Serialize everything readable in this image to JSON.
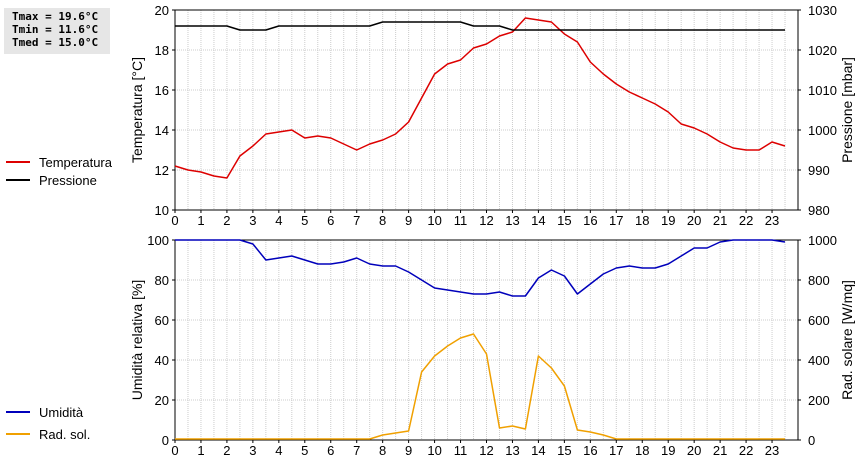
{
  "stats": {
    "tmax": "Tmax = 19.6°C",
    "tmin": "Tmin = 11.6°C",
    "tmed": "Tmed = 15.0°C"
  },
  "chart_data": [
    {
      "type": "line",
      "ylabel": "Temperatura [°C]",
      "y2label": "Pressione [mbar]",
      "xlim": [
        0,
        24
      ],
      "ylim": [
        10,
        20
      ],
      "y2lim": [
        980,
        1030
      ],
      "x_ticks": [
        "0",
        "1",
        "2",
        "3",
        "4",
        "5",
        "6",
        "7",
        "8",
        "9",
        "10",
        "11",
        "12",
        "13",
        "14",
        "15",
        "16",
        "17",
        "18",
        "19",
        "20",
        "21",
        "22",
        "23"
      ],
      "y_ticks": [
        "10",
        "12",
        "14",
        "16",
        "18",
        "20"
      ],
      "y2_ticks": [
        "980",
        "990",
        "1000",
        "1010",
        "1020",
        "1030"
      ],
      "grid": true,
      "series": [
        {
          "name": "Temperatura",
          "color": "#dd0000",
          "axis": "left",
          "x": [
            0,
            0.5,
            1,
            1.5,
            2,
            2.5,
            3,
            3.5,
            4,
            4.5,
            5,
            5.5,
            6,
            6.5,
            7,
            7.5,
            8,
            8.5,
            9,
            9.5,
            10,
            10.5,
            11,
            11.5,
            12,
            12.5,
            13,
            13.5,
            14,
            14.5,
            15,
            15.5,
            16,
            16.5,
            17,
            17.5,
            18,
            18.5,
            19,
            19.5,
            20,
            20.5,
            21,
            21.5,
            22,
            22.5,
            23,
            23.5
          ],
          "y": [
            12.2,
            12.0,
            11.9,
            11.7,
            11.6,
            12.7,
            13.2,
            13.8,
            13.9,
            14.0,
            13.6,
            13.7,
            13.6,
            13.3,
            13.0,
            13.3,
            13.5,
            13.8,
            14.4,
            15.6,
            16.8,
            17.3,
            17.5,
            18.1,
            18.3,
            18.7,
            18.9,
            19.6,
            19.5,
            19.4,
            18.8,
            18.4,
            17.4,
            16.8,
            16.3,
            15.9,
            15.6,
            15.3,
            14.9,
            14.3,
            14.1,
            13.8,
            13.4,
            13.1,
            13.0,
            13.0,
            13.4,
            13.2
          ]
        },
        {
          "name": "Pressione",
          "color": "#000000",
          "axis": "right",
          "x": [
            0,
            2,
            2.5,
            3,
            3.5,
            4,
            4.5,
            5,
            5.5,
            6,
            6.5,
            7,
            7.5,
            8,
            8.5,
            9,
            9.5,
            10,
            10.5,
            11,
            11.5,
            12,
            12.5,
            13,
            13.5,
            14,
            14.5,
            15,
            16,
            17,
            18,
            19,
            20,
            21,
            22,
            23,
            23.5
          ],
          "y": [
            1026,
            1026,
            1025,
            1025,
            1025,
            1026,
            1026,
            1026,
            1026,
            1026,
            1026,
            1026,
            1026,
            1027,
            1027,
            1027,
            1027,
            1027,
            1027,
            1027,
            1026,
            1026,
            1026,
            1025,
            1025,
            1025,
            1025,
            1025,
            1025,
            1025,
            1025,
            1025,
            1025,
            1025,
            1025,
            1025,
            1025
          ]
        }
      ]
    },
    {
      "type": "line",
      "ylabel": "Umidità relativa [%]",
      "y2label": "Rad. solare [W/mq]",
      "xlim": [
        0,
        24
      ],
      "ylim": [
        0,
        100
      ],
      "y2lim": [
        0,
        1000
      ],
      "x_ticks": [
        "0",
        "1",
        "2",
        "3",
        "4",
        "5",
        "6",
        "7",
        "8",
        "9",
        "10",
        "11",
        "12",
        "13",
        "14",
        "15",
        "16",
        "17",
        "18",
        "19",
        "20",
        "21",
        "22",
        "23"
      ],
      "y_ticks": [
        "0",
        "20",
        "40",
        "60",
        "80",
        "100"
      ],
      "y2_ticks": [
        "0",
        "200",
        "400",
        "600",
        "800",
        "1000"
      ],
      "grid": true,
      "series": [
        {
          "name": "Umidità",
          "color": "#0000bb",
          "axis": "left",
          "x": [
            0,
            0.5,
            1,
            1.5,
            2,
            2.5,
            3,
            3.5,
            4,
            4.5,
            5,
            5.5,
            6,
            6.5,
            7,
            7.5,
            8,
            8.5,
            9,
            9.5,
            10,
            10.5,
            11,
            11.5,
            12,
            12.5,
            13,
            13.5,
            14,
            14.5,
            15,
            15.5,
            16,
            16.5,
            17,
            17.5,
            18,
            18.5,
            19,
            19.5,
            20,
            20.5,
            21,
            21.5,
            22,
            22.5,
            23,
            23.5
          ],
          "y": [
            100,
            100,
            100,
            100,
            100,
            100,
            98,
            90,
            91,
            92,
            90,
            88,
            88,
            89,
            91,
            88,
            87,
            87,
            84,
            80,
            76,
            75,
            74,
            73,
            73,
            74,
            72,
            72,
            81,
            85,
            82,
            73,
            78,
            83,
            86,
            87,
            86,
            86,
            88,
            92,
            96,
            96,
            99,
            100,
            100,
            100,
            100,
            99
          ]
        },
        {
          "name": "Rad. sol.",
          "color": "#f0a000",
          "axis": "right",
          "x": [
            0,
            7.5,
            8,
            8.5,
            9,
            9.5,
            10,
            10.5,
            11,
            11.5,
            12,
            12.5,
            13,
            13.5,
            14,
            14.5,
            15,
            15.5,
            16,
            16.5,
            17,
            17.5,
            23.5
          ],
          "y": [
            5,
            5,
            25,
            35,
            45,
            340,
            420,
            470,
            510,
            530,
            430,
            60,
            70,
            55,
            420,
            360,
            270,
            50,
            40,
            25,
            5,
            5,
            5
          ]
        }
      ]
    }
  ]
}
